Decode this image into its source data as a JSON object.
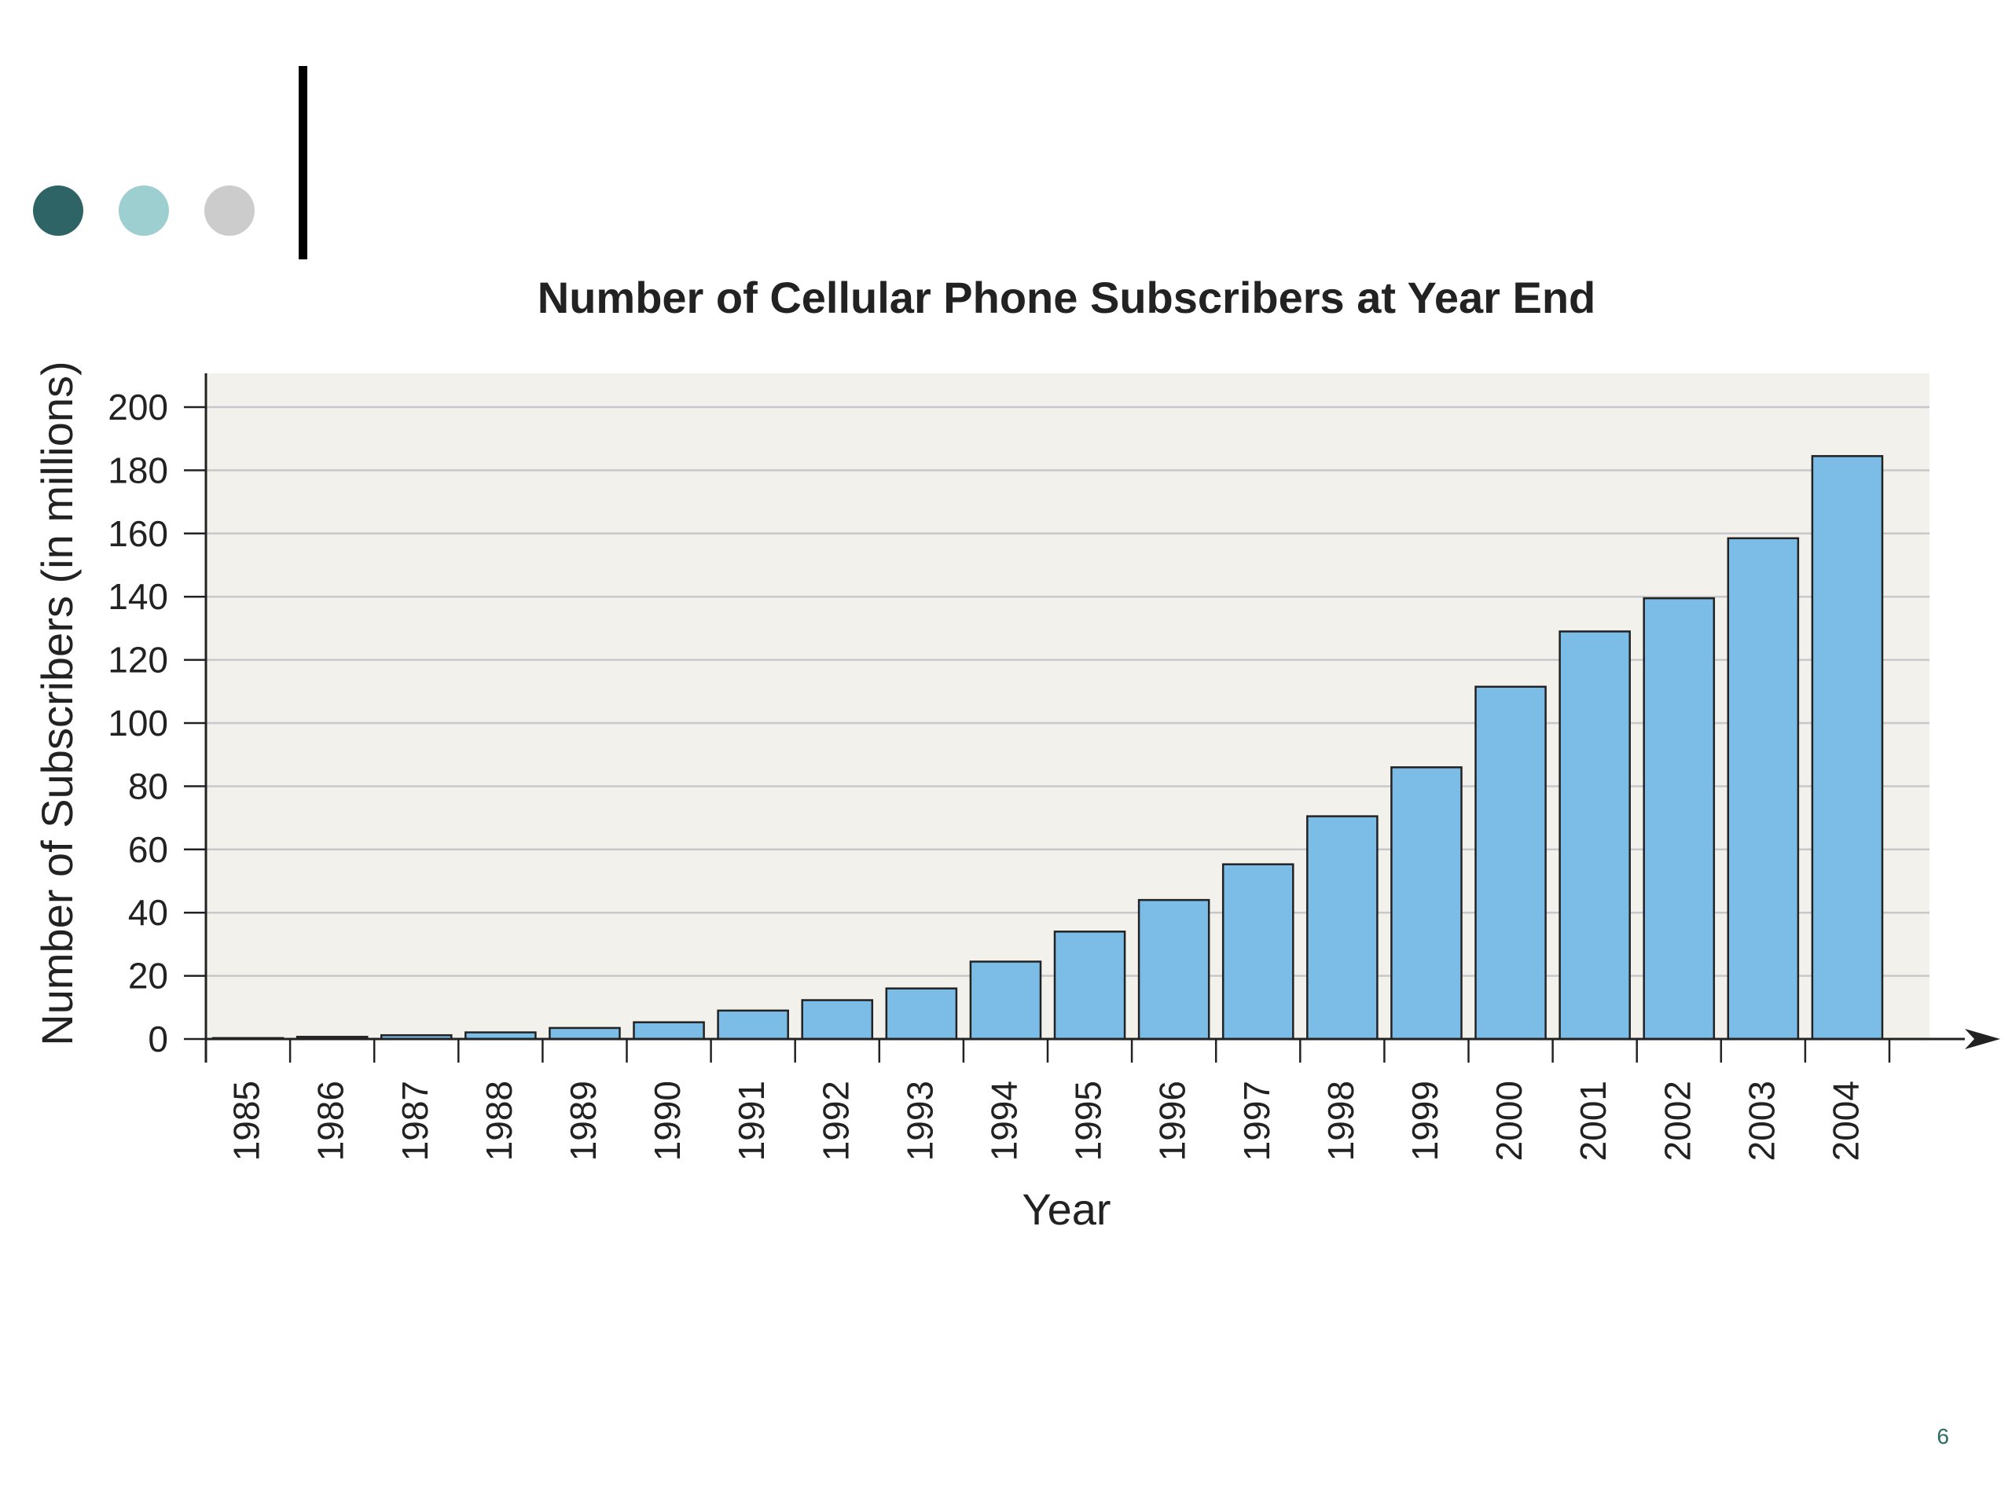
{
  "slide": {
    "page_number": "6",
    "decor_dot_colors": [
      "#2e6466",
      "#9dcfd0",
      "#cccccc"
    ],
    "accent_bar_color": "#000000"
  },
  "chart_data": {
    "type": "bar",
    "title": "Number of Cellular Phone Subscribers at Year End",
    "xlabel": "Year",
    "ylabel": "Number of Subscribers (in millions)",
    "categories": [
      "1985",
      "1986",
      "1987",
      "1988",
      "1989",
      "1990",
      "1991",
      "1992",
      "1993",
      "1994",
      "1995",
      "1996",
      "1997",
      "1998",
      "1999",
      "2000",
      "2001",
      "2002",
      "2003",
      "2004"
    ],
    "values": [
      0.3,
      0.7,
      1.2,
      2.1,
      3.5,
      5.3,
      9.0,
      12.3,
      16.0,
      24.5,
      34.0,
      44.0,
      55.3,
      70.5,
      86.0,
      111.5,
      129.0,
      139.5,
      158.5,
      184.5
    ],
    "ylim": [
      0,
      200
    ],
    "yticks": [
      0,
      20,
      40,
      60,
      80,
      100,
      120,
      140,
      160,
      180,
      200
    ],
    "grid": true,
    "colors": {
      "bar_fill": "#7cbde8",
      "bar_stroke": "#222222",
      "plot_background": "#f2f1ec",
      "grid": "#c8c8cc",
      "axis": "#222222",
      "text": "#222222"
    }
  }
}
